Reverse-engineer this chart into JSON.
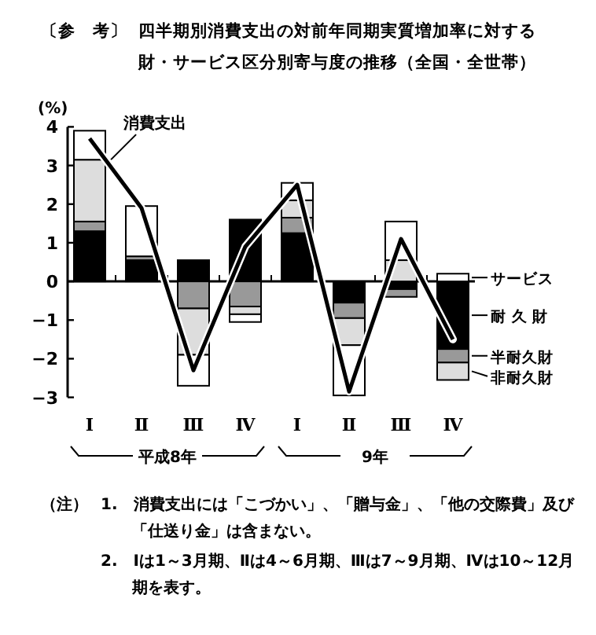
{
  "chart_data": {
    "type": "bar",
    "stacked": true,
    "title": "四半期別消費支出の対前年同期実質増加率に対する財・サービス区分別寄与度の推移（全国・全世帯）",
    "ylabel": "(%)",
    "categories": [
      "Ⅰ",
      "Ⅱ",
      "Ⅲ",
      "Ⅳ",
      "Ⅰ",
      "Ⅱ",
      "Ⅲ",
      "Ⅳ"
    ],
    "series": [
      {
        "name": "耐 久 財",
        "color": "#000000",
        "values": [
          1.3,
          0.55,
          0.55,
          1.6,
          1.25,
          -0.55,
          -0.2,
          -1.75
        ]
      },
      {
        "name": "半耐久財",
        "color": "#999999",
        "values": [
          0.25,
          0.1,
          -0.7,
          -0.65,
          0.4,
          -0.4,
          -0.2,
          -0.35
        ]
      },
      {
        "name": "非耐久財",
        "color": "#dddddd",
        "values": [
          1.6,
          0,
          -1.2,
          -0.2,
          0.45,
          -0.7,
          0.55,
          -0.45
        ]
      },
      {
        "name": "サービス",
        "color": "#ffffff",
        "values": [
          0.75,
          1.3,
          -0.8,
          -0.2,
          0.45,
          -1.3,
          1.0,
          0.2
        ]
      },
      {
        "name": "消費支出",
        "type": "line",
        "color": "#000000",
        "values": [
          3.7,
          1.9,
          -2.3,
          0.9,
          2.5,
          -2.85,
          1.1,
          -1.5
        ]
      }
    ],
    "ylim": [
      -3,
      4
    ],
    "yticks": [
      -3,
      -2,
      -1,
      0,
      1,
      2,
      3,
      4
    ],
    "legend": "right",
    "annotations": [
      "〔参　考〕",
      "平成8年",
      "9年",
      "（注）",
      "1.　消費支出には「こづかい」、「贈与金」、「他の交際費」及び「仕送り金」は含まない。",
      "2.　Ⅰは1～3月期、Ⅱは4～6月期、Ⅲは7～9月期、Ⅳは10～12月期を表す。"
    ]
  }
}
